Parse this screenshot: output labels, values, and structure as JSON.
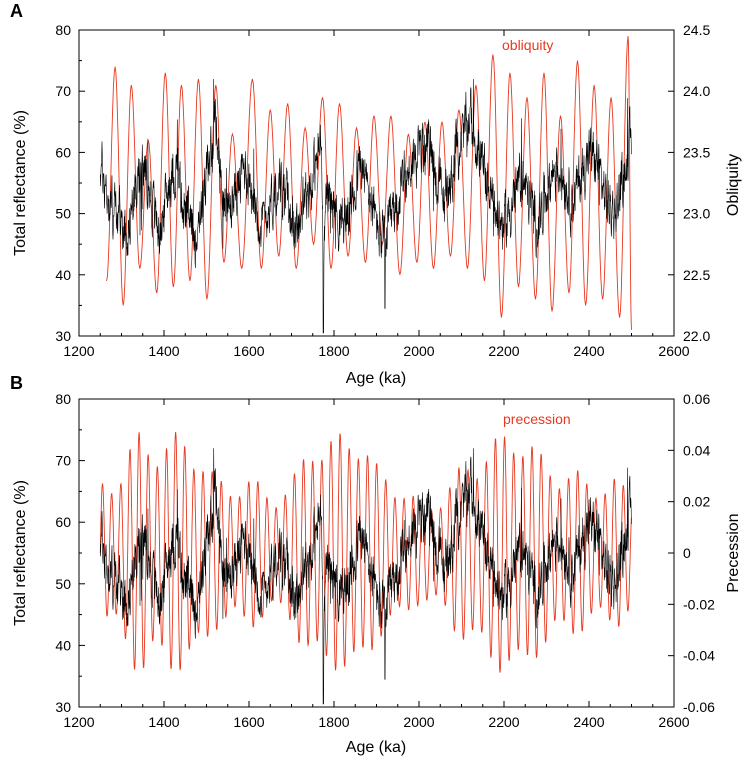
{
  "chart_data": [
    {
      "type": "line",
      "panel_label": "A",
      "xlabel": "Age (ka)",
      "ylabel": "Total reflectance (%)",
      "y2label": "Obliquity",
      "xlim": [
        1200,
        2600
      ],
      "ylim": [
        30,
        80
      ],
      "y2lim": [
        22.0,
        24.5
      ],
      "x_ticks": [
        1200,
        1400,
        1600,
        1800,
        2000,
        2200,
        2400,
        2600
      ],
      "y_ticks": [
        30,
        40,
        50,
        60,
        70,
        80
      ],
      "y2_ticks": [
        "22.0",
        "22.5",
        "23.0",
        "23.5",
        "24.0",
        "24.5"
      ],
      "grid": false,
      "series": [
        {
          "axis": "left",
          "color": "#000000",
          "x_range": [
            1250,
            2500
          ],
          "values": [
            [
              1250,
              58
            ],
            [
              1270,
              52
            ],
            [
              1290,
              50
            ],
            [
              1310,
              47
            ],
            [
              1330,
              53
            ],
            [
              1350,
              57
            ],
            [
              1370,
              52
            ],
            [
              1390,
              47
            ],
            [
              1410,
              55
            ],
            [
              1430,
              58
            ],
            [
              1450,
              50
            ],
            [
              1470,
              46
            ],
            [
              1490,
              53
            ],
            [
              1510,
              60
            ],
            [
              1520,
              66
            ],
            [
              1530,
              56
            ],
            [
              1550,
              50
            ],
            [
              1570,
              54
            ],
            [
              1590,
              58
            ],
            [
              1610,
              53
            ],
            [
              1630,
              48
            ],
            [
              1650,
              52
            ],
            [
              1670,
              56
            ],
            [
              1690,
              52
            ],
            [
              1710,
              47
            ],
            [
              1730,
              52
            ],
            [
              1750,
              56
            ],
            [
              1770,
              62
            ],
            [
              1775,
              35
            ],
            [
              1780,
              55
            ],
            [
              1800,
              50
            ],
            [
              1820,
              48
            ],
            [
              1840,
              52
            ],
            [
              1860,
              58
            ],
            [
              1880,
              54
            ],
            [
              1900,
              48
            ],
            [
              1920,
              45
            ],
            [
              1940,
              50
            ],
            [
              1960,
              54
            ],
            [
              1980,
              58
            ],
            [
              2000,
              60
            ],
            [
              2020,
              62
            ],
            [
              2040,
              56
            ],
            [
              2060,
              52
            ],
            [
              2080,
              58
            ],
            [
              2100,
              62
            ],
            [
              2120,
              66
            ],
            [
              2140,
              60
            ],
            [
              2160,
              55
            ],
            [
              2180,
              50
            ],
            [
              2200,
              48
            ],
            [
              2220,
              52
            ],
            [
              2240,
              56
            ],
            [
              2260,
              52
            ],
            [
              2280,
              48
            ],
            [
              2300,
              54
            ],
            [
              2320,
              58
            ],
            [
              2340,
              56
            ],
            [
              2360,
              52
            ],
            [
              2380,
              56
            ],
            [
              2400,
              60
            ],
            [
              2420,
              58
            ],
            [
              2440,
              52
            ],
            [
              2460,
              50
            ],
            [
              2480,
              56
            ],
            [
              2500,
              62
            ]
          ]
        },
        {
          "axis": "right",
          "name": "obliquity",
          "color": "#e8381f",
          "x_range": [
            1250,
            2500
          ],
          "peaks": [
            [
              1285,
              24.2
            ],
            [
              1323,
              24.05
            ],
            [
              1363,
              23.6
            ],
            [
              1403,
              24.15
            ],
            [
              1441,
              24.05
            ],
            [
              1481,
              24.1
            ],
            [
              1522,
              24.05
            ],
            [
              1561,
              23.65
            ],
            [
              1608,
              24.1
            ],
            [
              1650,
              23.85
            ],
            [
              1691,
              23.9
            ],
            [
              1732,
              23.7
            ],
            [
              1773,
              23.95
            ],
            [
              1813,
              23.9
            ],
            [
              1853,
              23.7
            ],
            [
              1894,
              23.8
            ],
            [
              1934,
              23.8
            ],
            [
              1975,
              23.65
            ],
            [
              2014,
              23.75
            ],
            [
              2054,
              23.75
            ],
            [
              2094,
              23.85
            ],
            [
              2134,
              24.05
            ],
            [
              2174,
              24.3
            ],
            [
              2214,
              24.15
            ],
            [
              2254,
              23.95
            ],
            [
              2294,
              24.15
            ],
            [
              2333,
              23.8
            ],
            [
              2373,
              24.25
            ],
            [
              2412,
              24.05
            ],
            [
              2452,
              23.95
            ],
            [
              2492,
              24.45
            ]
          ],
          "troughs": [
            [
              1265,
              22.45
            ],
            [
              1304,
              22.25
            ],
            [
              1343,
              22.55
            ],
            [
              1383,
              22.35
            ],
            [
              1422,
              22.4
            ],
            [
              1461,
              22.45
            ],
            [
              1501,
              22.3
            ],
            [
              1541,
              22.6
            ],
            [
              1583,
              22.55
            ],
            [
              1629,
              22.55
            ],
            [
              1670,
              22.65
            ],
            [
              1711,
              22.55
            ],
            [
              1752,
              22.75
            ],
            [
              1793,
              22.55
            ],
            [
              1833,
              22.65
            ],
            [
              1874,
              22.6
            ],
            [
              1914,
              22.75
            ],
            [
              1955,
              22.5
            ],
            [
              1995,
              22.6
            ],
            [
              2034,
              22.55
            ],
            [
              2074,
              22.65
            ],
            [
              2114,
              22.55
            ],
            [
              2154,
              22.45
            ],
            [
              2194,
              22.15
            ],
            [
              2234,
              22.4
            ],
            [
              2274,
              22.3
            ],
            [
              2313,
              22.2
            ],
            [
              2353,
              22.35
            ],
            [
              2392,
              22.25
            ],
            [
              2432,
              22.3
            ],
            [
              2472,
              22.15
            ],
            [
              2500,
              22.05
            ]
          ]
        }
      ]
    },
    {
      "type": "line",
      "panel_label": "B",
      "xlabel": "Age (ka)",
      "ylabel": "Total reflectance (%)",
      "y2label": "Precession",
      "xlim": [
        1200,
        2600
      ],
      "ylim": [
        30,
        80
      ],
      "y2lim": [
        -0.06,
        0.06
      ],
      "x_ticks": [
        1200,
        1400,
        1600,
        1800,
        2000,
        2200,
        2400,
        2600
      ],
      "y_ticks": [
        30,
        40,
        50,
        60,
        70,
        80
      ],
      "y2_ticks": [
        "-0.06",
        "-0.04",
        "-0.02",
        "0",
        "0.02",
        "0.04",
        "0.06"
      ],
      "grid": false,
      "series": [
        {
          "axis": "left",
          "color": "#000000",
          "x_range": [
            1250,
            2500
          ],
          "values": [
            [
              1250,
              58
            ],
            [
              1270,
              52
            ],
            [
              1290,
              50
            ],
            [
              1310,
              47
            ],
            [
              1330,
              53
            ],
            [
              1350,
              57
            ],
            [
              1370,
              52
            ],
            [
              1390,
              47
            ],
            [
              1410,
              55
            ],
            [
              1430,
              58
            ],
            [
              1450,
              50
            ],
            [
              1470,
              46
            ],
            [
              1490,
              53
            ],
            [
              1510,
              60
            ],
            [
              1520,
              66
            ],
            [
              1530,
              56
            ],
            [
              1550,
              50
            ],
            [
              1570,
              54
            ],
            [
              1590,
              58
            ],
            [
              1610,
              53
            ],
            [
              1630,
              48
            ],
            [
              1650,
              52
            ],
            [
              1670,
              56
            ],
            [
              1690,
              52
            ],
            [
              1710,
              47
            ],
            [
              1730,
              52
            ],
            [
              1750,
              56
            ],
            [
              1770,
              62
            ],
            [
              1775,
              35
            ],
            [
              1780,
              55
            ],
            [
              1800,
              50
            ],
            [
              1820,
              48
            ],
            [
              1840,
              52
            ],
            [
              1860,
              58
            ],
            [
              1880,
              54
            ],
            [
              1900,
              48
            ],
            [
              1920,
              45
            ],
            [
              1940,
              50
            ],
            [
              1960,
              54
            ],
            [
              1980,
              58
            ],
            [
              2000,
              60
            ],
            [
              2020,
              62
            ],
            [
              2040,
              56
            ],
            [
              2060,
              52
            ],
            [
              2080,
              58
            ],
            [
              2100,
              62
            ],
            [
              2120,
              66
            ],
            [
              2140,
              60
            ],
            [
              2160,
              55
            ],
            [
              2180,
              50
            ],
            [
              2200,
              48
            ],
            [
              2220,
              52
            ],
            [
              2240,
              56
            ],
            [
              2260,
              52
            ],
            [
              2280,
              48
            ],
            [
              2300,
              54
            ],
            [
              2320,
              58
            ],
            [
              2340,
              56
            ],
            [
              2360,
              52
            ],
            [
              2380,
              56
            ],
            [
              2400,
              60
            ],
            [
              2420,
              58
            ],
            [
              2440,
              52
            ],
            [
              2460,
              50
            ],
            [
              2480,
              56
            ],
            [
              2500,
              62
            ]
          ]
        },
        {
          "axis": "right",
          "name": "precession",
          "color": "#e8381f",
          "x_range": [
            1250,
            2500
          ],
          "period_ka": 21.5,
          "amplitude_envelope": [
            [
              1250,
              0.03
            ],
            [
              1300,
              0.035
            ],
            [
              1350,
              0.052
            ],
            [
              1400,
              0.045
            ],
            [
              1460,
              0.05
            ],
            [
              1520,
              0.03
            ],
            [
              1600,
              0.03
            ],
            [
              1660,
              0.025
            ],
            [
              1700,
              0.028
            ],
            [
              1750,
              0.05
            ],
            [
              1800,
              0.045
            ],
            [
              1850,
              0.055
            ],
            [
              1900,
              0.035
            ],
            [
              1950,
              0.03
            ],
            [
              2000,
              0.02
            ],
            [
              2060,
              0.025
            ],
            [
              2120,
              0.04
            ],
            [
              2180,
              0.045
            ],
            [
              2230,
              0.055
            ],
            [
              2280,
              0.04
            ],
            [
              2340,
              0.035
            ],
            [
              2400,
              0.03
            ],
            [
              2460,
              0.03
            ],
            [
              2500,
              0.025
            ]
          ]
        }
      ]
    }
  ],
  "labels": {
    "a_panel": "A",
    "b_panel": "B",
    "a_legend": "obliquity",
    "b_legend": "precession",
    "a_xlabel": "Age (ka)",
    "b_xlabel": "Age (ka)",
    "a_ylabel": "Total reflectance (%)",
    "b_ylabel": "Total reflectance (%)",
    "a_y2label": "Obliquity",
    "b_y2label": "Precession"
  }
}
